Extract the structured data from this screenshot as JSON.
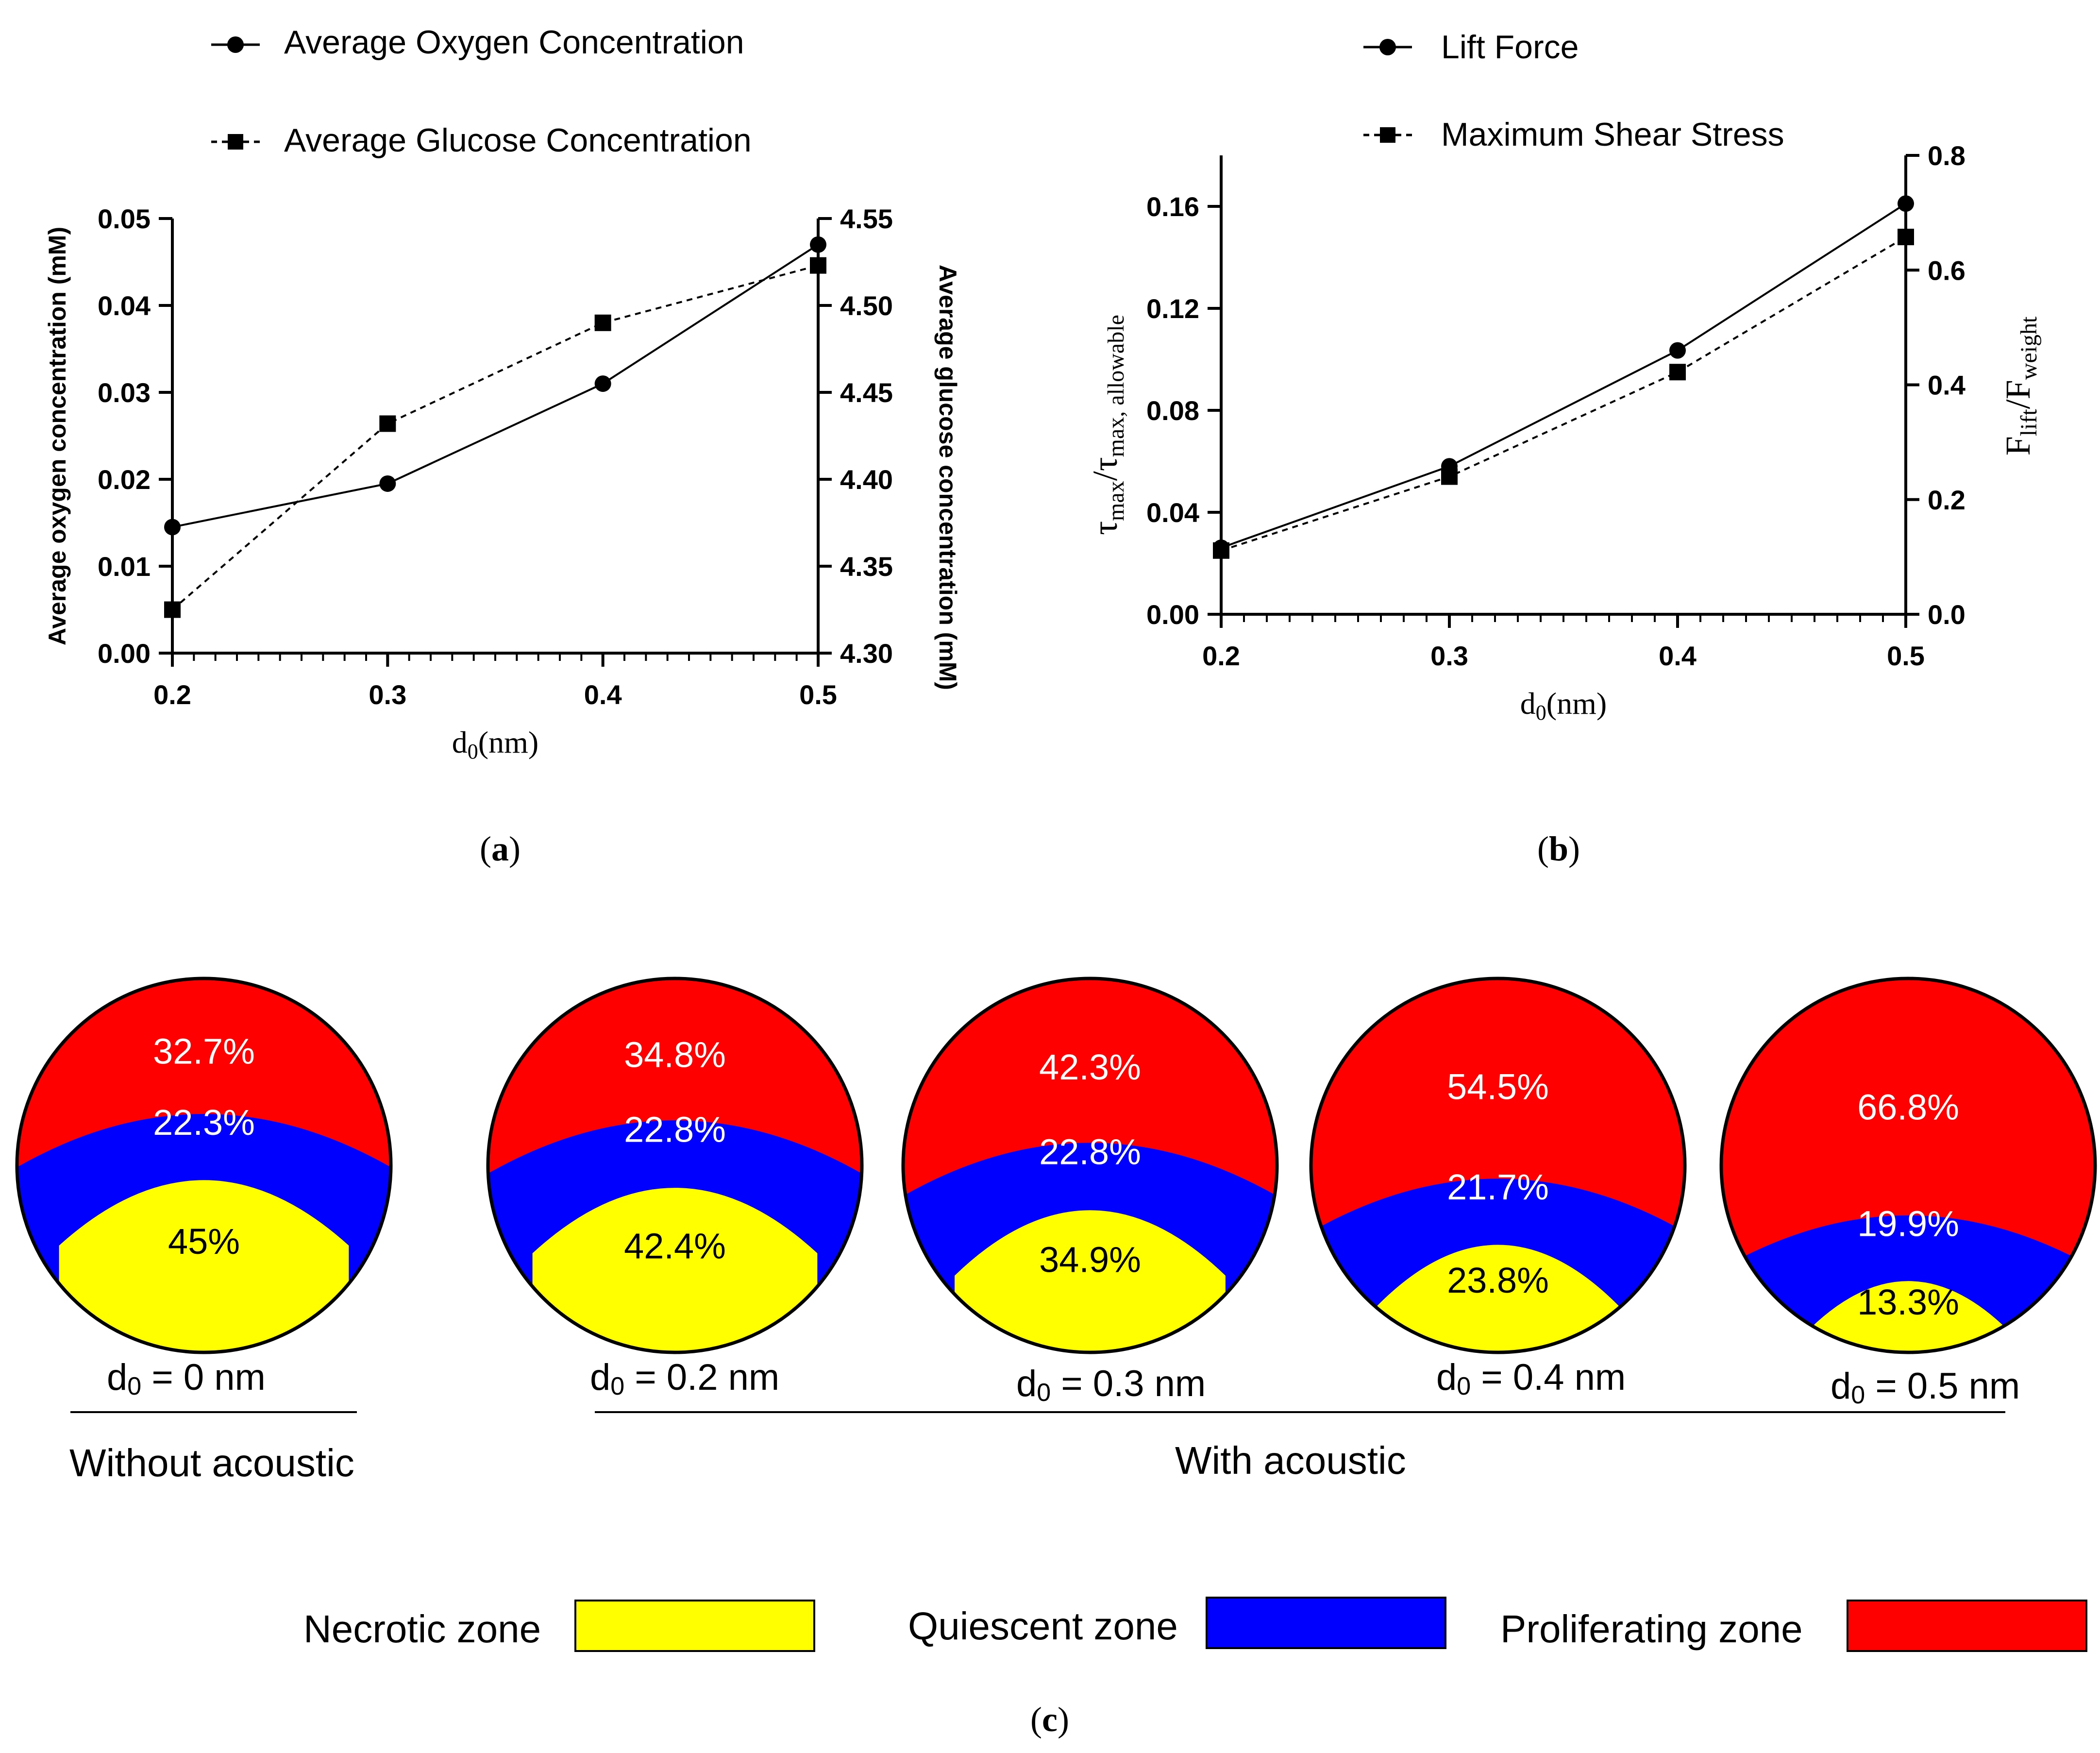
{
  "chart_data": [
    {
      "panel": "(a)",
      "type": "line",
      "panel_label": "a",
      "x": [
        0.2,
        0.3,
        0.4,
        0.5
      ],
      "x_tick_labels": [
        "0.2",
        "0.3",
        "0.4",
        "0.5"
      ],
      "xlabel_main": "d",
      "xlabel_sub": "0",
      "xlabel_unit": "(nm)",
      "xlim": [
        0.2,
        0.5
      ],
      "ylabel_left": "Average oxygen concentration (mM)",
      "ylim_left": [
        0,
        0.05
      ],
      "y_ticks_left": [
        "0.00",
        "0.01",
        "0.02",
        "0.03",
        "0.04",
        "0.05"
      ],
      "ylabel_right": "Average glucose concentration (mM)",
      "ylim_right": [
        4.3,
        4.55
      ],
      "y_ticks_right": [
        "4.30",
        "4.35",
        "4.40",
        "4.45",
        "4.50",
        "4.55"
      ],
      "series": [
        {
          "name": "Average Oxygen Concentration",
          "axis": "left",
          "marker": "circle",
          "line": "solid",
          "values": [
            0.0145,
            0.0195,
            0.031,
            0.047
          ]
        },
        {
          "name": "Average Glucose Concentration",
          "axis": "right",
          "marker": "square",
          "line": "dashed",
          "values": [
            4.325,
            4.432,
            4.49,
            4.523
          ]
        }
      ],
      "grid": false,
      "legend": "top-left"
    },
    {
      "panel": "(b)",
      "type": "line",
      "panel_label": "b",
      "x": [
        0.2,
        0.3,
        0.4,
        0.5
      ],
      "x_tick_labels": [
        "0.2",
        "0.3",
        "0.4",
        "0.5"
      ],
      "xlabel_main": "d",
      "xlabel_sub": "0",
      "xlabel_unit": "(nm)",
      "xlim": [
        0.2,
        0.5
      ],
      "ylabel_left": {
        "t1": "τ",
        "s1": "max",
        "slash": "/",
        "t2": "τ",
        "s2": "max, allowable"
      },
      "ylim_left": [
        0,
        0.18
      ],
      "y_ticks_left": [
        "0.00",
        "0.04",
        "0.08",
        "0.12",
        "0.16"
      ],
      "ylabel_right": {
        "t1": "F",
        "s1": "lift",
        "slash": "/",
        "t2": "F",
        "s2": "weight"
      },
      "ylim_right": [
        0,
        0.8
      ],
      "y_ticks_right": [
        "0.0",
        "0.2",
        "0.4",
        "0.6",
        "0.8"
      ],
      "series": [
        {
          "name": "Lift Force",
          "axis": "right",
          "marker": "circle",
          "line": "solid",
          "values": [
            0.116,
            0.258,
            0.46,
            0.716
          ]
        },
        {
          "name": "Maximum Shear Stress",
          "axis": "left",
          "marker": "square",
          "line": "dashed",
          "values": [
            0.025,
            0.054,
            0.095,
            0.148
          ]
        }
      ],
      "grid": false,
      "legend": "top-left"
    },
    {
      "panel": "(c)",
      "type": "diagram",
      "panel_label": "c",
      "zones": {
        "necrotic": {
          "label": "Necrotic zone",
          "color": "#ffff00"
        },
        "quiescent": {
          "label": "Quiescent zone",
          "color": "#0000ff"
        },
        "proliferating": {
          "label": "Proliferating zone",
          "color": "#ff0000"
        }
      },
      "circles": [
        {
          "caption_d": "d",
          "caption_sub": "0",
          "caption_rest": " = 0 nm",
          "proliferating": "32.7%",
          "quiescent": "22.3%",
          "necrotic": "45%",
          "proliferating_frac": 0.327,
          "quiescent_frac": 0.223,
          "necrotic_frac": 0.45
        },
        {
          "caption_d": "d",
          "caption_sub": "0",
          "caption_rest": " = 0.2 nm",
          "proliferating": "34.8%",
          "quiescent": "22.8%",
          "necrotic": "42.4%",
          "proliferating_frac": 0.348,
          "quiescent_frac": 0.228,
          "necrotic_frac": 0.424
        },
        {
          "caption_d": "d",
          "caption_sub": "0",
          "caption_rest": " = 0.3 nm",
          "proliferating": "42.3%",
          "quiescent": "22.8%",
          "necrotic": "34.9%",
          "proliferating_frac": 0.423,
          "quiescent_frac": 0.228,
          "necrotic_frac": 0.349
        },
        {
          "caption_d": "d",
          "caption_sub": "0",
          "caption_rest": " = 0.4 nm",
          "proliferating": "54.5%",
          "quiescent": "21.7%",
          "necrotic": "23.8%",
          "proliferating_frac": 0.545,
          "quiescent_frac": 0.217,
          "necrotic_frac": 0.238
        },
        {
          "caption_d": "d",
          "caption_sub": "0",
          "caption_rest": " = 0.5 nm",
          "proliferating": "66.8%",
          "quiescent": "19.9%",
          "necrotic": "13.3%",
          "proliferating_frac": 0.668,
          "quiescent_frac": 0.199,
          "necrotic_frac": 0.133
        }
      ],
      "group_without": "Without acoustic",
      "group_with": "With acoustic"
    }
  ]
}
